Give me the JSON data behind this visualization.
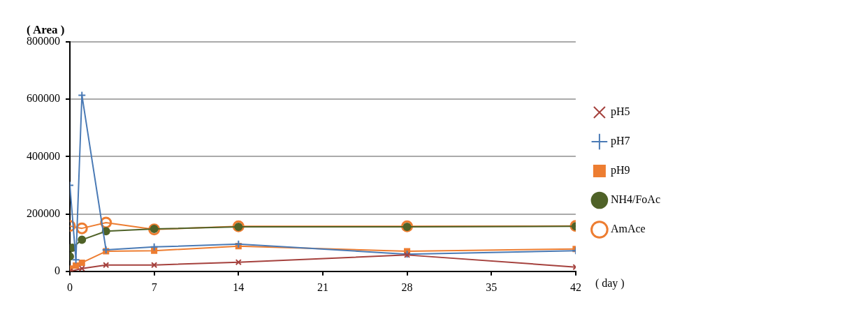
{
  "chart_data": {
    "type": "line",
    "xlabel": "( day )",
    "ylabel": "( Area )",
    "xlim": [
      0,
      42
    ],
    "xticks": [
      0,
      7,
      14,
      21,
      28,
      35,
      42
    ],
    "ylim": [
      0,
      800000
    ],
    "yticks": [
      0,
      200000,
      400000,
      600000,
      800000
    ],
    "grid": "y",
    "legend": "right",
    "line_style": "solid",
    "series": [
      {
        "name": "pH5",
        "color": "#a5413d",
        "marker": "cross",
        "x": [
          0,
          1,
          3,
          7,
          14,
          28,
          42
        ],
        "values": [
          0,
          10000,
          22000,
          22000,
          32000,
          57000,
          15000
        ]
      },
      {
        "name": "pH7",
        "color": "#4a7ab5",
        "marker": "cross",
        "x": [
          0,
          0.5,
          1,
          3,
          7,
          14,
          28,
          42
        ],
        "values": [
          300000,
          40000,
          614000,
          75000,
          85000,
          95000,
          60000,
          72000
        ]
      },
      {
        "name": "pH9",
        "color": "#ed7d31",
        "marker": "square",
        "x": [
          0,
          0.5,
          1,
          3,
          7,
          14,
          28,
          42
        ],
        "values": [
          10000,
          20000,
          30000,
          70000,
          72000,
          88000,
          70000,
          78000
        ]
      },
      {
        "name": "NH4/FoAc",
        "color": "#4f6228",
        "marker": "circle",
        "x": [
          0,
          0.2,
          1,
          3,
          7,
          14,
          28,
          42
        ],
        "values": [
          52000,
          82000,
          110000,
          140000,
          148000,
          155000,
          155000,
          157000
        ]
      },
      {
        "name": "AmAce",
        "color": "#ed7d31",
        "marker": "circle",
        "x": [
          0,
          1,
          3,
          7,
          14,
          28,
          42
        ],
        "values": [
          158000,
          150000,
          170000,
          146000,
          157000,
          157000,
          158000
        ]
      }
    ]
  }
}
